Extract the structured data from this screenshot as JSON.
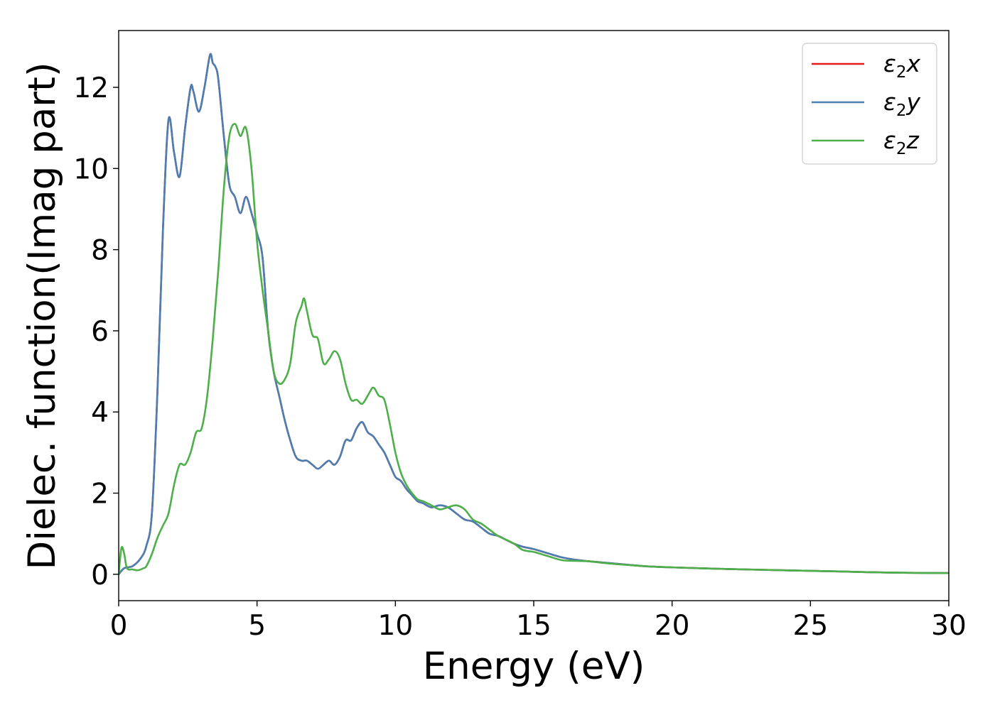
{
  "chart_data": {
    "type": "line",
    "title": "",
    "xlabel": "Energy (eV)",
    "ylabel": "Dielec. function(Imag part)",
    "xlim": [
      0,
      30
    ],
    "ylim": [
      -0.65,
      13.4
    ],
    "xticks": [
      0,
      5,
      10,
      15,
      20,
      25,
      30
    ],
    "yticks": [
      0,
      2,
      4,
      6,
      8,
      10,
      12
    ],
    "grid": false,
    "legend_position": "top-right",
    "series": [
      {
        "name": "ε₂x",
        "legend_base": "ε",
        "legend_sub": "2",
        "legend_suffix": "x",
        "color": "#e41a1c",
        "x": [
          0,
          0.2,
          0.5,
          0.8,
          1.0,
          1.2,
          1.4,
          1.6,
          1.8,
          2.0,
          2.2,
          2.4,
          2.6,
          2.7,
          2.9,
          3.1,
          3.3,
          3.4,
          3.5,
          3.6,
          3.8,
          4.0,
          4.2,
          4.4,
          4.6,
          4.8,
          5.0,
          5.2,
          5.4,
          5.6,
          5.8,
          6.0,
          6.2,
          6.4,
          6.6,
          6.8,
          7.0,
          7.2,
          7.4,
          7.6,
          7.8,
          8.0,
          8.2,
          8.4,
          8.6,
          8.8,
          9.0,
          9.2,
          9.4,
          9.6,
          9.8,
          10.0,
          10.2,
          10.4,
          10.6,
          10.8,
          11.0,
          11.3,
          11.6,
          11.9,
          12.2,
          12.5,
          12.8,
          13.1,
          13.4,
          13.7,
          14.0,
          14.3,
          14.6,
          15.0,
          15.5,
          16.0,
          16.5,
          17.0,
          17.5,
          18.0,
          19.0,
          20.0,
          22.0,
          24.0,
          26.0,
          28.0,
          30.0
        ],
        "values": [
          0.0,
          0.15,
          0.2,
          0.4,
          0.7,
          1.5,
          4.5,
          8.5,
          11.2,
          10.4,
          9.8,
          11.0,
          12.0,
          11.9,
          11.4,
          12.0,
          12.8,
          12.6,
          12.5,
          12.2,
          10.8,
          9.6,
          9.3,
          8.9,
          9.3,
          8.9,
          8.4,
          7.8,
          6.0,
          5.0,
          4.4,
          3.8,
          3.3,
          2.9,
          2.8,
          2.8,
          2.7,
          2.6,
          2.7,
          2.8,
          2.7,
          2.9,
          3.3,
          3.3,
          3.6,
          3.75,
          3.5,
          3.4,
          3.2,
          3.0,
          2.7,
          2.4,
          2.3,
          2.1,
          1.95,
          1.8,
          1.75,
          1.65,
          1.7,
          1.65,
          1.5,
          1.35,
          1.3,
          1.15,
          1.0,
          0.95,
          0.85,
          0.75,
          0.68,
          0.62,
          0.52,
          0.42,
          0.36,
          0.32,
          0.29,
          0.26,
          0.2,
          0.17,
          0.13,
          0.1,
          0.07,
          0.04,
          0.03
        ]
      },
      {
        "name": "ε₂y",
        "legend_base": "ε",
        "legend_sub": "2",
        "legend_suffix": "y",
        "color": "#4a7fb3",
        "x": [
          0,
          0.2,
          0.5,
          0.8,
          1.0,
          1.2,
          1.4,
          1.6,
          1.8,
          2.0,
          2.2,
          2.4,
          2.6,
          2.7,
          2.9,
          3.1,
          3.3,
          3.4,
          3.5,
          3.6,
          3.8,
          4.0,
          4.2,
          4.4,
          4.6,
          4.8,
          5.0,
          5.2,
          5.4,
          5.6,
          5.8,
          6.0,
          6.2,
          6.4,
          6.6,
          6.8,
          7.0,
          7.2,
          7.4,
          7.6,
          7.8,
          8.0,
          8.2,
          8.4,
          8.6,
          8.8,
          9.0,
          9.2,
          9.4,
          9.6,
          9.8,
          10.0,
          10.2,
          10.4,
          10.6,
          10.8,
          11.0,
          11.3,
          11.6,
          11.9,
          12.2,
          12.5,
          12.8,
          13.1,
          13.4,
          13.7,
          14.0,
          14.3,
          14.6,
          15.0,
          15.5,
          16.0,
          16.5,
          17.0,
          17.5,
          18.0,
          19.0,
          20.0,
          22.0,
          24.0,
          26.0,
          28.0,
          30.0
        ],
        "values": [
          0.0,
          0.15,
          0.2,
          0.4,
          0.7,
          1.5,
          4.5,
          8.5,
          11.2,
          10.4,
          9.8,
          11.0,
          12.0,
          11.9,
          11.4,
          12.0,
          12.8,
          12.6,
          12.5,
          12.2,
          10.8,
          9.6,
          9.3,
          8.9,
          9.3,
          8.9,
          8.4,
          7.8,
          6.0,
          5.0,
          4.4,
          3.8,
          3.3,
          2.9,
          2.8,
          2.8,
          2.7,
          2.6,
          2.7,
          2.8,
          2.7,
          2.9,
          3.3,
          3.3,
          3.6,
          3.75,
          3.5,
          3.4,
          3.2,
          3.0,
          2.7,
          2.4,
          2.3,
          2.1,
          1.95,
          1.8,
          1.75,
          1.65,
          1.7,
          1.65,
          1.5,
          1.35,
          1.3,
          1.15,
          1.0,
          0.95,
          0.85,
          0.75,
          0.68,
          0.62,
          0.52,
          0.42,
          0.36,
          0.32,
          0.29,
          0.26,
          0.2,
          0.17,
          0.13,
          0.1,
          0.07,
          0.04,
          0.03
        ]
      },
      {
        "name": "ε₂z",
        "legend_base": "ε",
        "legend_sub": "2",
        "legend_suffix": "z",
        "color": "#4daf4a",
        "x": [
          0,
          0.1,
          0.2,
          0.3,
          0.5,
          0.7,
          0.9,
          1.0,
          1.2,
          1.4,
          1.6,
          1.8,
          2.0,
          2.2,
          2.4,
          2.6,
          2.8,
          3.0,
          3.2,
          3.4,
          3.6,
          3.8,
          4.0,
          4.2,
          4.4,
          4.6,
          4.8,
          5.0,
          5.2,
          5.4,
          5.6,
          5.8,
          6.0,
          6.2,
          6.4,
          6.6,
          6.7,
          6.8,
          7.0,
          7.2,
          7.4,
          7.6,
          7.8,
          8.0,
          8.2,
          8.4,
          8.6,
          8.8,
          9.0,
          9.2,
          9.4,
          9.6,
          9.8,
          10.0,
          10.2,
          10.4,
          10.6,
          10.8,
          11.0,
          11.3,
          11.6,
          11.9,
          12.2,
          12.5,
          12.8,
          13.1,
          13.4,
          13.7,
          14.0,
          14.3,
          14.6,
          15.0,
          15.5,
          16.0,
          16.5,
          17.0,
          17.5,
          18.0,
          19.0,
          20.0,
          22.0,
          24.0,
          26.0,
          28.0,
          30.0
        ],
        "values": [
          0.0,
          0.65,
          0.5,
          0.15,
          0.12,
          0.1,
          0.15,
          0.2,
          0.5,
          0.9,
          1.2,
          1.5,
          2.2,
          2.7,
          2.7,
          3.0,
          3.5,
          3.6,
          4.4,
          5.8,
          7.5,
          9.5,
          10.8,
          11.1,
          10.8,
          11.0,
          10.0,
          8.2,
          7.0,
          6.0,
          5.0,
          4.7,
          4.8,
          5.2,
          6.2,
          6.6,
          6.8,
          6.5,
          5.9,
          5.8,
          5.2,
          5.3,
          5.5,
          5.3,
          4.7,
          4.3,
          4.3,
          4.2,
          4.4,
          4.6,
          4.4,
          4.3,
          3.7,
          3.0,
          2.5,
          2.2,
          2.0,
          1.85,
          1.8,
          1.7,
          1.6,
          1.65,
          1.7,
          1.6,
          1.35,
          1.25,
          1.1,
          0.95,
          0.85,
          0.75,
          0.6,
          0.55,
          0.45,
          0.35,
          0.33,
          0.32,
          0.28,
          0.25,
          0.2,
          0.17,
          0.13,
          0.1,
          0.07,
          0.04,
          0.03
        ]
      }
    ]
  }
}
